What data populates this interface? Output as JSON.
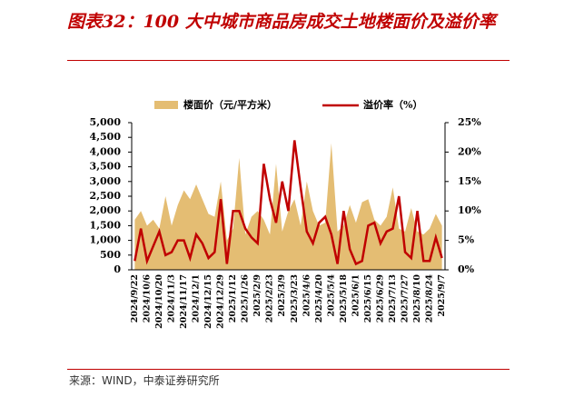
{
  "chart_data": {
    "type": "area-line",
    "title": "图表32：100 大中城市商品房成交土地楼面价及溢价率",
    "source": "来源：WIND，中泰证券研究所",
    "categories": [
      "2024/9/22",
      null,
      "2024/10/6",
      null,
      "2024/10/20",
      null,
      "2024/11/3",
      null,
      "2024/11/17",
      null,
      "2024/12/1",
      null,
      "2024/12/15",
      null,
      "2024/12/29",
      null,
      "2025/1/12",
      null,
      "2025/1/26",
      null,
      "2025/2/9",
      null,
      "2025/2/23",
      null,
      "2025/3/9",
      null,
      "2025/3/23",
      null,
      "2025/4/6",
      null,
      "2025/4/20",
      null,
      "2025/5/4",
      null,
      "2025/5/18",
      null,
      "2025/6/1",
      null,
      "2025/6/15",
      null,
      "2025/6/29",
      null,
      "2025/7/13",
      null,
      "2025/7/27",
      null,
      "2025/8/10",
      null,
      "2025/8/24",
      null,
      "2025/9/7"
    ],
    "series": [
      {
        "name": "楼面价（元/平方米）",
        "color": "#e4bd73",
        "values": [
          1700,
          2000,
          1500,
          1700,
          1400,
          2500,
          1500,
          2200,
          2700,
          2400,
          2900,
          2400,
          1900,
          1800,
          3000,
          1000,
          1400,
          3800,
          1200,
          1800,
          2000,
          1700,
          1200,
          3600,
          1300,
          2000,
          2400,
          1500,
          3000,
          2000,
          1500,
          1600,
          4300,
          1300,
          1500,
          2200,
          1600,
          2300,
          2400,
          1700,
          1500,
          1800,
          2800,
          1400,
          1300,
          2100,
          1300,
          1200,
          1400,
          1900,
          1500
        ]
      },
      {
        "name": "溢价率（%）",
        "color": "#c00000",
        "axis": "y2",
        "values": [
          1.5,
          7,
          1.5,
          4,
          6.5,
          2.5,
          3,
          5,
          5,
          2,
          6,
          4.5,
          2,
          3,
          12,
          1,
          10,
          10,
          7,
          5.5,
          4.5,
          18,
          12,
          8,
          15,
          10,
          22,
          14,
          6.5,
          4.5,
          8,
          9,
          6,
          1,
          10,
          3.5,
          1,
          1.5,
          7.5,
          8,
          4.5,
          6.5,
          7,
          12.5,
          3,
          2,
          10,
          1.5,
          1.5,
          5.5,
          2
        ]
      }
    ],
    "ylim": [
      0,
      5000
    ],
    "yticks": [
      0,
      {
        "value": 500,
        "label": "500"
      },
      {
        "value": 1000,
        "label": "1,000"
      },
      {
        "value": 1500,
        "label": "1,500"
      },
      {
        "value": 2000,
        "label": "2,000"
      },
      {
        "value": 2500,
        "label": "2,500"
      },
      {
        "value": 3000,
        "label": "3,000"
      },
      {
        "value": 3500,
        "label": "3,500"
      },
      {
        "value": 4000,
        "label": "4,000"
      },
      {
        "value": 4500,
        "label": "4,500"
      },
      {
        "value": 5000,
        "label": "5,000"
      }
    ],
    "y2lim": [
      0,
      25
    ],
    "y2ticks": [
      {
        "value": 0,
        "label": "0%"
      },
      {
        "value": 5,
        "label": "5%"
      },
      {
        "value": 10,
        "label": "10%"
      },
      {
        "value": 15,
        "label": "15%"
      },
      {
        "value": 20,
        "label": "20%"
      },
      {
        "value": 25,
        "label": "25%"
      }
    ]
  }
}
